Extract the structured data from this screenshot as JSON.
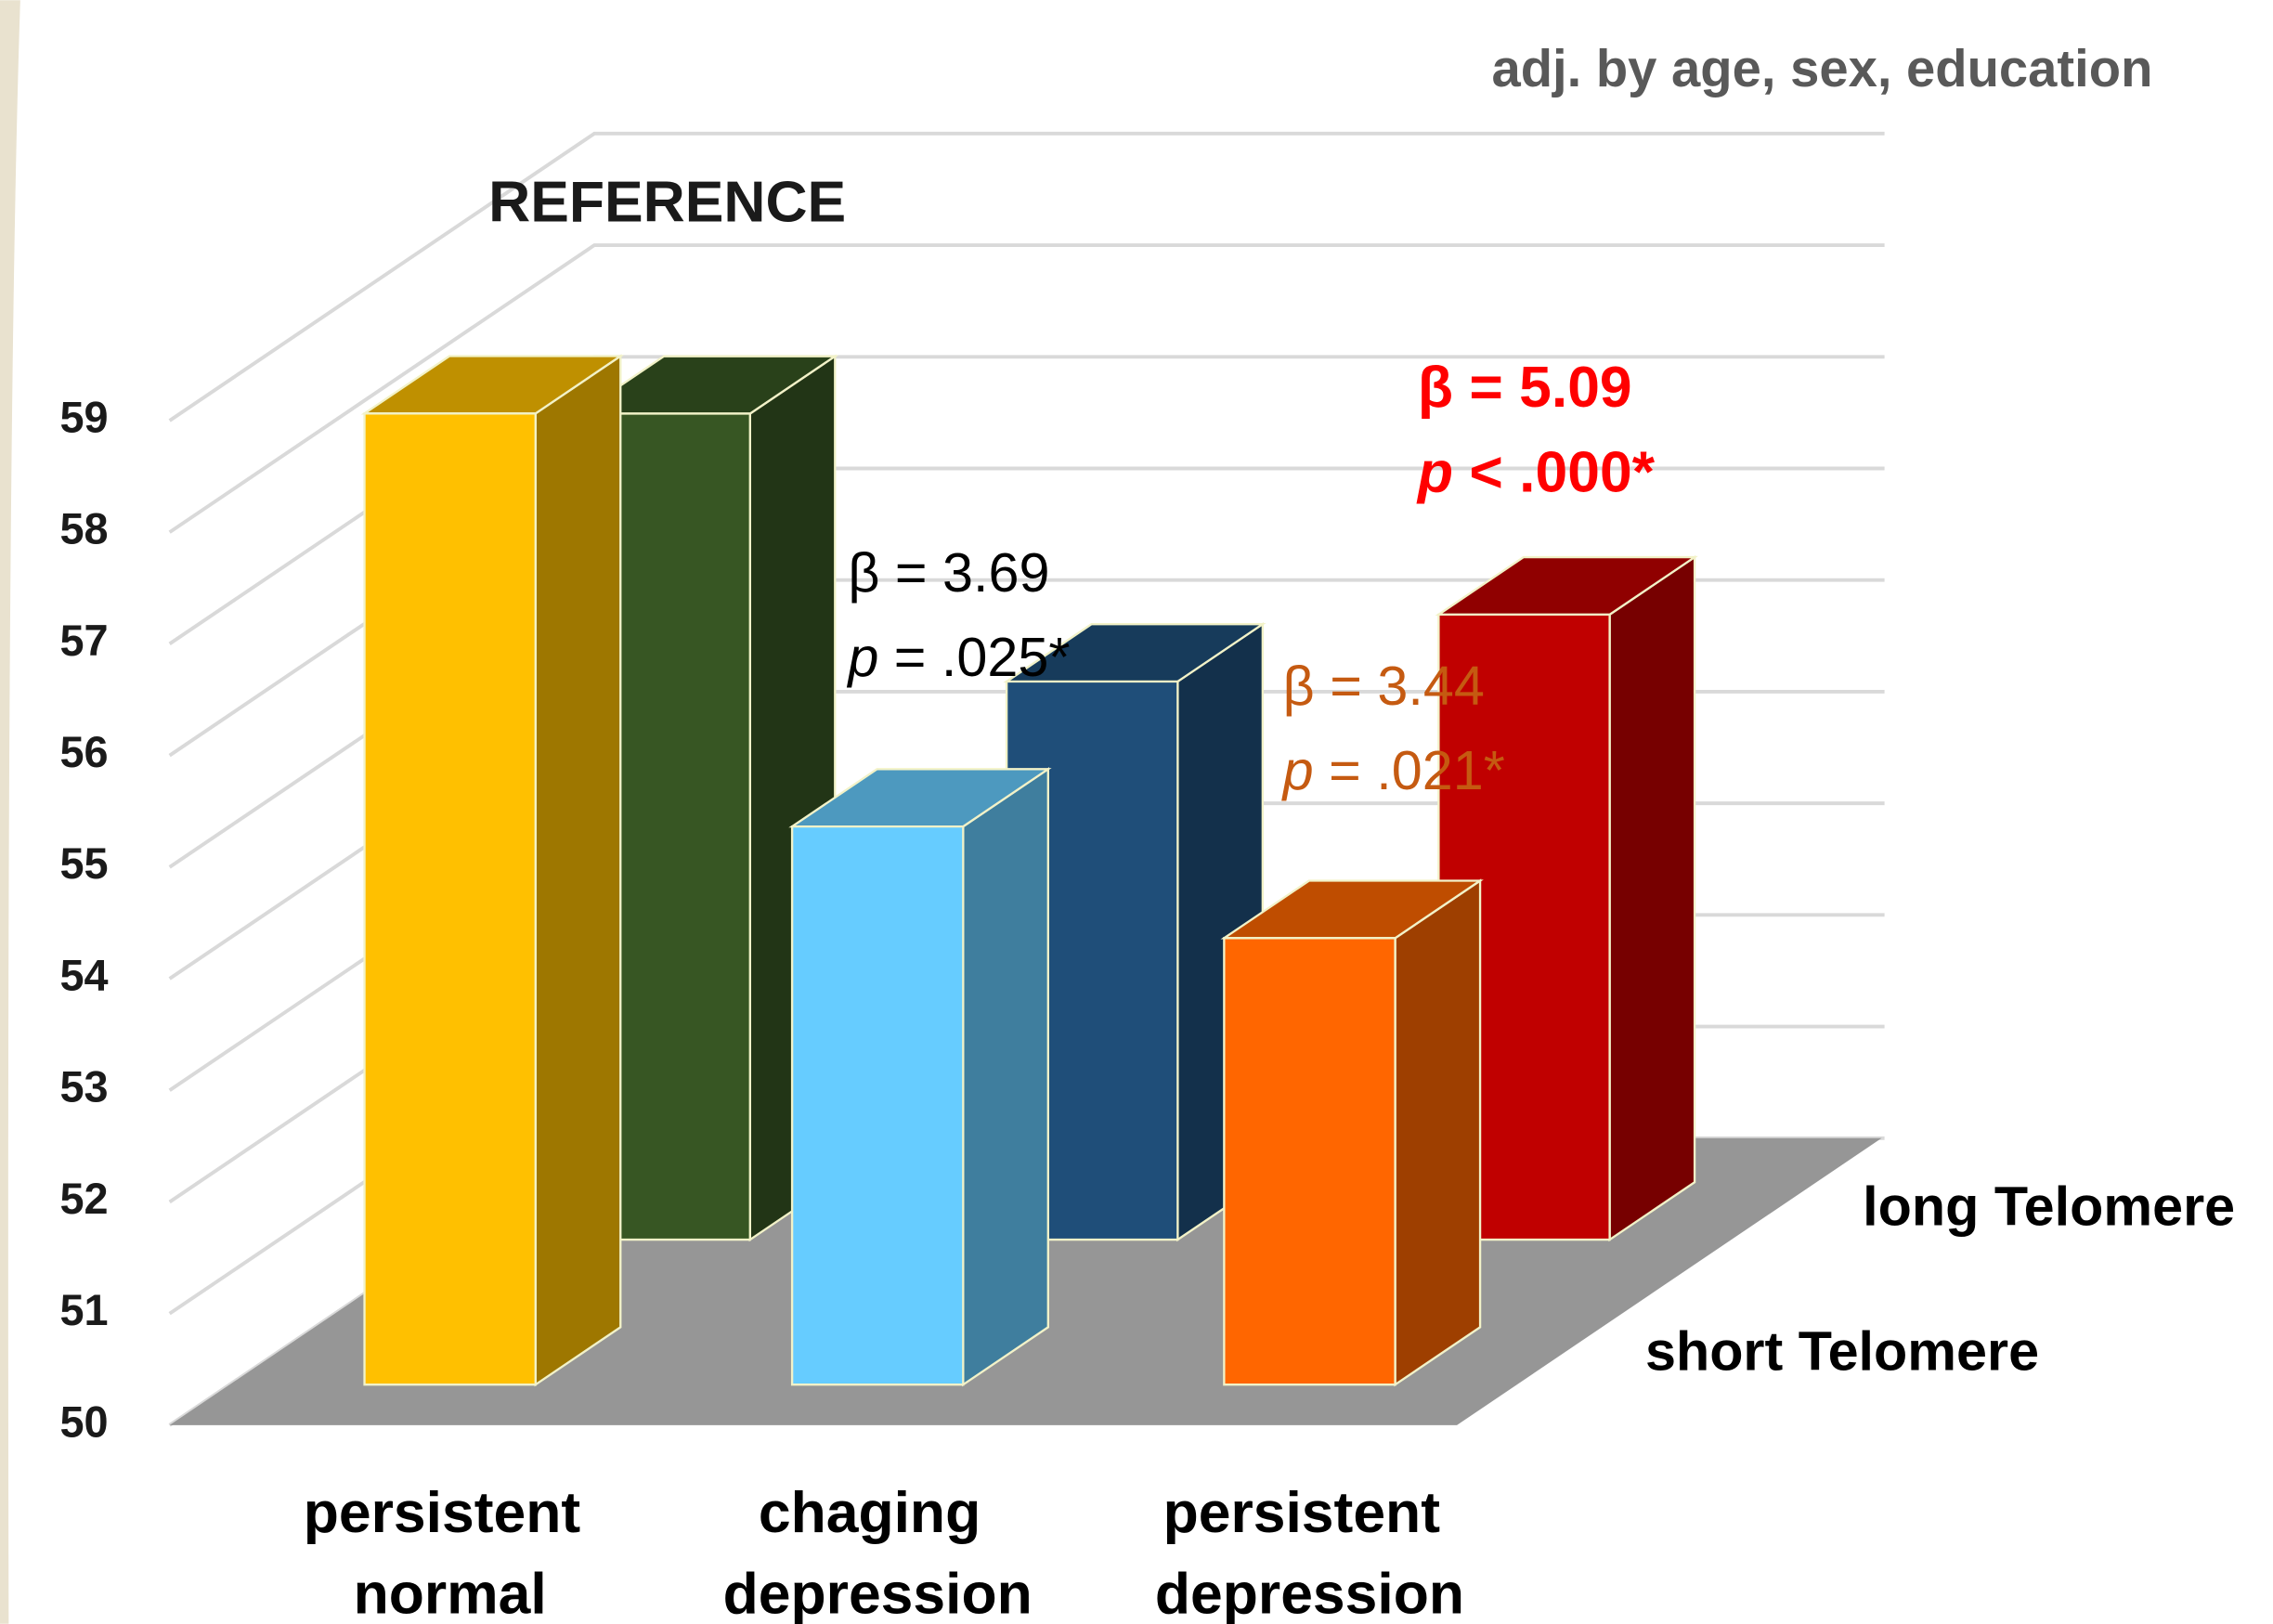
{
  "chart_data": {
    "type": "bar3d",
    "subtitle": "adj. by age, sex, education",
    "categories": [
      "persistent normal",
      "chaging depression",
      "persistent depression"
    ],
    "series": [
      {
        "name": "short Telomere",
        "colors": [
          "#FFC000",
          "#66CCFF",
          "#FF6600"
        ],
        "values": [
          58.7,
          55.0,
          54.0
        ]
      },
      {
        "name": "long Telomere",
        "colors": [
          "#375623",
          "#1F4E79",
          "#C00000"
        ],
        "values": [
          57.4,
          55.0,
          55.6
        ]
      }
    ],
    "ylim": [
      50,
      59
    ],
    "yticks": [
      50,
      51,
      52,
      53,
      54,
      55,
      56,
      57,
      58,
      59
    ],
    "grid": true,
    "annotations": [
      {
        "text": "REFERENCE",
        "color": "#1a1a1a"
      },
      {
        "text": "β = 3.69",
        "color": "#000000"
      },
      {
        "text": "p = .025*",
        "color": "#000000"
      },
      {
        "text": "β = 3.44",
        "color": "#C55A11"
      },
      {
        "text": "p = .021*",
        "color": "#C55A11"
      },
      {
        "text": "β = 5.09",
        "color": "#FF0000"
      },
      {
        "text": "p < .000*",
        "color": "#FF0000"
      }
    ]
  }
}
